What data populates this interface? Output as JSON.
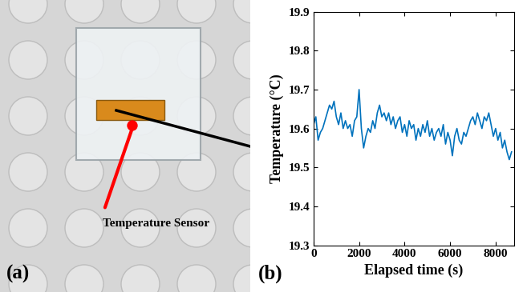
{
  "chart_data": {
    "type": "line",
    "xlabel": "Elapsed time (s)",
    "ylabel": "Temperature (°C)",
    "x": [
      0,
      100,
      200,
      300,
      400,
      500,
      600,
      700,
      800,
      900,
      1000,
      1100,
      1200,
      1300,
      1400,
      1500,
      1600,
      1700,
      1800,
      1900,
      2000,
      2100,
      2200,
      2300,
      2400,
      2500,
      2600,
      2700,
      2800,
      2900,
      3000,
      3100,
      3200,
      3300,
      3400,
      3500,
      3600,
      3700,
      3800,
      3900,
      4000,
      4100,
      4200,
      4300,
      4400,
      4500,
      4600,
      4700,
      4800,
      4900,
      5000,
      5100,
      5200,
      5300,
      5400,
      5500,
      5600,
      5700,
      5800,
      5900,
      6000,
      6100,
      6200,
      6300,
      6400,
      6500,
      6600,
      6700,
      6800,
      6900,
      7000,
      7100,
      7200,
      7300,
      7400,
      7500,
      7600,
      7700,
      7800,
      7900,
      8000,
      8100,
      8200,
      8300,
      8400,
      8500,
      8600,
      8700
    ],
    "values": [
      19.61,
      19.63,
      19.57,
      19.59,
      19.6,
      19.62,
      19.64,
      19.66,
      19.65,
      19.67,
      19.63,
      19.61,
      19.64,
      19.6,
      19.62,
      19.6,
      19.61,
      19.58,
      19.62,
      19.63,
      19.7,
      19.6,
      19.55,
      19.58,
      19.6,
      19.59,
      19.62,
      19.6,
      19.64,
      19.66,
      19.63,
      19.64,
      19.62,
      19.64,
      19.61,
      19.63,
      19.6,
      19.62,
      19.63,
      19.59,
      19.61,
      19.58,
      19.62,
      19.6,
      19.61,
      19.57,
      19.6,
      19.58,
      19.61,
      19.59,
      19.62,
      19.58,
      19.6,
      19.57,
      19.59,
      19.6,
      19.58,
      19.61,
      19.56,
      19.59,
      19.57,
      19.53,
      19.58,
      19.6,
      19.57,
      19.56,
      19.59,
      19.58,
      19.6,
      19.62,
      19.63,
      19.61,
      19.64,
      19.62,
      19.6,
      19.63,
      19.62,
      19.64,
      19.61,
      19.58,
      19.6,
      19.57,
      19.59,
      19.55,
      19.57,
      19.54,
      19.52,
      19.54
    ],
    "color": "#0072bd",
    "xlim": [
      0,
      8800
    ],
    "xticks": [
      0,
      2000,
      4000,
      6000,
      8000
    ],
    "ylim": [
      19.3,
      19.9
    ],
    "yticks": [
      19.3,
      19.4,
      19.5,
      19.6,
      19.7,
      19.8,
      19.9
    ],
    "grid": false
  },
  "panels": {
    "a": {
      "label": "(a)",
      "annotation": "Temperature Sensor"
    },
    "b": {
      "label": "(b)"
    }
  }
}
